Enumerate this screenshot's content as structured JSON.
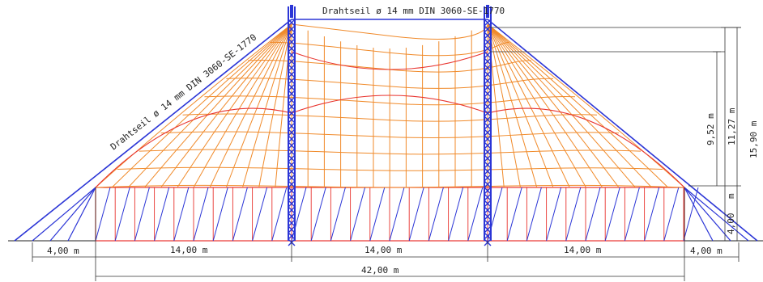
{
  "cable_label_top": "Drahtseil ø 14 mm DIN 3060-SE-1770",
  "cable_label_left": "Drahtseil ø 14 mm DIN 3060-SE-1770",
  "dimensions": {
    "left_outer": "4,00  m",
    "span_left": "14,00   m",
    "span_middle": "14,00   m",
    "span_right": "14,00   m",
    "right_outer": "4,00   m",
    "total_width": "42,00   m",
    "height_wall": "4,00",
    "height_wall_unit": "m",
    "height_eave_to_low": "9,52   m",
    "height_eave_to_mid": "11,27   m",
    "height_total": "15,90   m"
  },
  "colors": {
    "mast": "#2b35d6",
    "roof": "#f08a2a",
    "wall": "#e8332e",
    "dimension": "#333333"
  }
}
